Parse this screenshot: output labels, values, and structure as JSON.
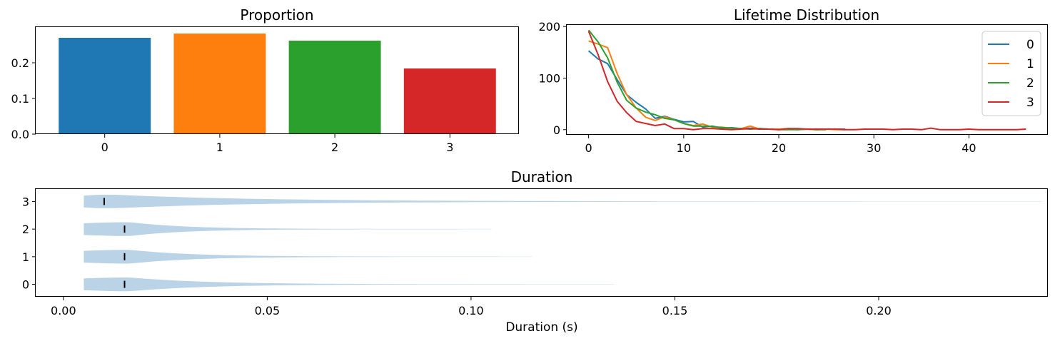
{
  "chart_data": [
    {
      "type": "bar",
      "title": "Proportion",
      "categories": [
        "0",
        "1",
        "2",
        "3"
      ],
      "values": [
        0.27,
        0.282,
        0.262,
        0.184
      ],
      "colors": [
        "#1f77b4",
        "#ff7f0e",
        "#2ca02c",
        "#d62728"
      ],
      "ylim": [
        0,
        0.3
      ],
      "yticks": [
        0.0,
        0.1,
        0.2
      ],
      "ytick_labels": [
        "0.0",
        "0.1",
        "0.2"
      ],
      "xlabel": "",
      "ylabel": ""
    },
    {
      "type": "line",
      "title": "Lifetime Distribution",
      "xlim": [
        -2.3,
        48.3
      ],
      "ylim": [
        -10,
        203
      ],
      "xticks": [
        0,
        10,
        20,
        30,
        40
      ],
      "xtick_labels": [
        "0",
        "10",
        "20",
        "30",
        "40"
      ],
      "yticks": [
        0,
        100,
        200
      ],
      "ytick_labels": [
        "0",
        "100",
        "200"
      ],
      "legend_position": "top-right",
      "series": [
        {
          "name": "0",
          "color": "#1f77b4",
          "x": [
            0,
            1,
            2,
            3,
            4,
            5,
            6,
            7,
            8,
            9,
            10,
            11,
            12,
            13,
            14,
            15,
            16,
            17,
            18,
            19,
            20,
            21,
            22,
            23,
            24,
            25,
            26,
            27
          ],
          "values": [
            153,
            137,
            128,
            97,
            68,
            53,
            40,
            22,
            26,
            20,
            15,
            16,
            5,
            7,
            3,
            4,
            2,
            3,
            2,
            1,
            1,
            1,
            0,
            1,
            0,
            1,
            1,
            1
          ]
        },
        {
          "name": "1",
          "color": "#ff7f0e",
          "x": [
            0,
            1,
            2,
            3,
            4,
            5,
            6,
            7,
            8,
            9,
            10,
            11,
            12,
            13,
            14,
            15,
            16,
            17,
            18,
            19,
            20,
            21,
            22,
            23,
            24,
            25,
            26,
            27
          ],
          "values": [
            172,
            166,
            159,
            109,
            68,
            42,
            24,
            18,
            25,
            19,
            12,
            8,
            11,
            5,
            5,
            3,
            2,
            7,
            1,
            1,
            1,
            2,
            1,
            1,
            0,
            1,
            0,
            0
          ]
        },
        {
          "name": "2",
          "color": "#2ca02c",
          "x": [
            0,
            1,
            2,
            3,
            4,
            5,
            6,
            7,
            8,
            9,
            10,
            11,
            12,
            13,
            14,
            15,
            16,
            17,
            18,
            19,
            20,
            21,
            22,
            23,
            24,
            25
          ],
          "values": [
            193,
            170,
            139,
            92,
            57,
            42,
            34,
            29,
            22,
            19,
            12,
            7,
            7,
            6,
            4,
            3,
            2,
            1,
            2,
            1,
            0,
            0,
            0,
            1,
            0,
            0
          ]
        },
        {
          "name": "3",
          "color": "#d62728",
          "x": [
            0,
            1,
            2,
            3,
            4,
            5,
            6,
            7,
            8,
            9,
            10,
            11,
            12,
            13,
            14,
            15,
            16,
            17,
            18,
            19,
            20,
            21,
            22,
            23,
            24,
            25,
            26,
            27,
            28,
            29,
            30,
            31,
            32,
            33,
            34,
            35,
            36,
            37,
            38,
            39,
            40,
            41,
            42,
            43,
            44,
            45,
            46
          ],
          "values": [
            191,
            145,
            93,
            55,
            33,
            16,
            12,
            8,
            11,
            2,
            2,
            0,
            2,
            2,
            1,
            0,
            1,
            2,
            1,
            1,
            0,
            2,
            2,
            1,
            1,
            1,
            1,
            0,
            0,
            1,
            1,
            1,
            0,
            1,
            1,
            0,
            3,
            0,
            0,
            0,
            1,
            0,
            0,
            0,
            0,
            0,
            1
          ]
        }
      ]
    },
    {
      "type": "violin",
      "title": "Duration",
      "orientation": "horizontal",
      "xlabel": "Duration (s)",
      "ylabel": "",
      "xlim": [
        -0.0068,
        0.2415
      ],
      "categories": [
        "0",
        "1",
        "2",
        "3"
      ],
      "xticks": [
        0.0,
        0.05,
        0.1,
        0.15,
        0.2
      ],
      "xtick_labels": [
        "0.00",
        "0.05",
        "0.10",
        "0.15",
        "0.20"
      ],
      "fill_color": "#a9c8e1",
      "median_color": "#000000",
      "series": [
        {
          "name": "0",
          "min": 0.005,
          "median": 0.015,
          "max": 0.135
        },
        {
          "name": "1",
          "min": 0.005,
          "median": 0.015,
          "max": 0.115
        },
        {
          "name": "2",
          "min": 0.005,
          "median": 0.015,
          "max": 0.105
        },
        {
          "name": "3",
          "min": 0.005,
          "median": 0.01,
          "max": 0.24
        }
      ]
    }
  ]
}
